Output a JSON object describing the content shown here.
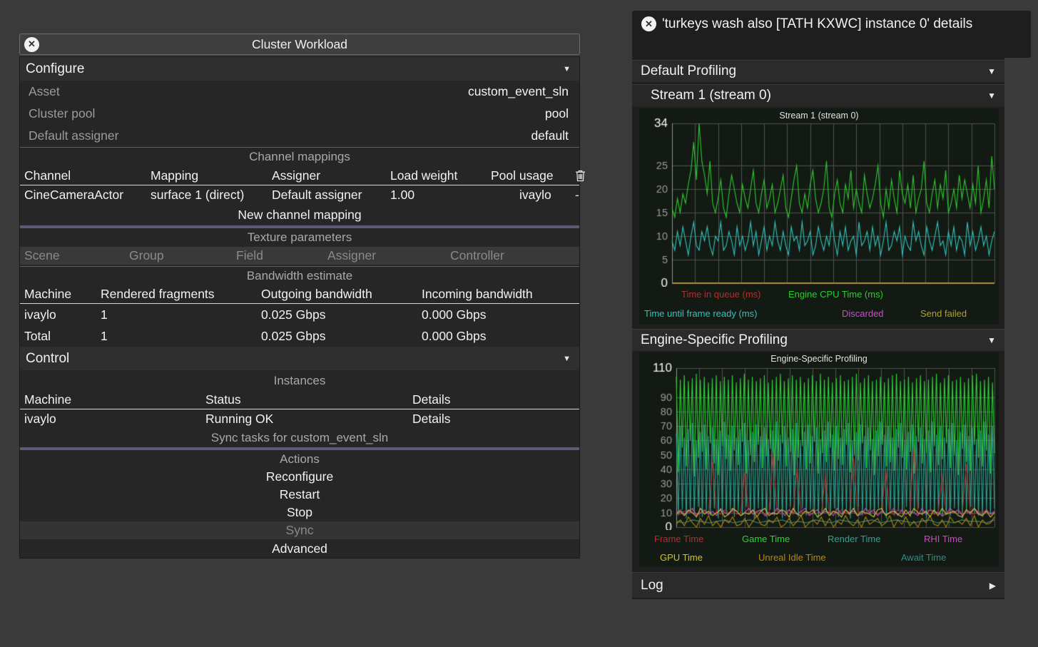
{
  "left_window": {
    "title": "Cluster Workload",
    "configure": {
      "label": "Configure",
      "rows": [
        {
          "label": "Asset",
          "value": "custom_event_sln"
        },
        {
          "label": "Cluster pool",
          "value": "pool"
        },
        {
          "label": "Default assigner",
          "value": "default"
        }
      ]
    },
    "channel_mappings": {
      "title": "Channel mappings",
      "columns": [
        "Channel",
        "Mapping",
        "Assigner",
        "Load weight",
        "Pool usage"
      ],
      "row": {
        "channel": "CineCameraActor",
        "mapping": "surface 1 (direct)",
        "assigner": "Default assigner",
        "load_weight": "1.00",
        "pool_usage": "ivaylo",
        "delete": "-"
      },
      "new_button": "New channel mapping"
    },
    "texture_parameters": {
      "title": "Texture parameters",
      "columns": [
        "Scene",
        "Group",
        "Field",
        "Assigner",
        "Controller"
      ]
    },
    "bandwidth": {
      "title": "Bandwidth estimate",
      "columns": [
        "Machine",
        "Rendered fragments",
        "Outgoing bandwidth",
        "Incoming bandwidth"
      ],
      "rows": [
        [
          "ivaylo",
          "1",
          "0.025 Gbps",
          "0.000 Gbps"
        ],
        [
          "Total",
          "1",
          "0.025 Gbps",
          "0.000 Gbps"
        ]
      ]
    },
    "control": {
      "label": "Control",
      "instances_title": "Instances",
      "columns": [
        "Machine",
        "Status",
        "Details"
      ],
      "row": {
        "machine": "ivaylo",
        "status": "Running OK",
        "details": "Details"
      },
      "sync_tasks": "Sync tasks for custom_event_sln"
    },
    "actions": {
      "title": "Actions",
      "items": [
        {
          "label": "Reconfigure",
          "disabled": false
        },
        {
          "label": "Restart",
          "disabled": false
        },
        {
          "label": "Stop",
          "disabled": false
        },
        {
          "label": "Sync",
          "disabled": true
        },
        {
          "label": "Advanced",
          "disabled": false
        }
      ]
    }
  },
  "right_window": {
    "title": "'turkeys wash also [TATH KXWC] instance 0' details",
    "default_profiling_label": "Default Profiling",
    "stream_label": "Stream 1 (stream 0)",
    "engine_label": "Engine-Specific Profiling",
    "log_label": "Log"
  },
  "chart_data": [
    {
      "type": "line",
      "title": "Stream 1 (stream 0)",
      "xlabel": "",
      "ylabel": "",
      "ylim": [
        0,
        34
      ],
      "yticks": [
        0,
        5,
        10,
        15,
        20,
        25,
        34
      ],
      "grid": true,
      "x_gridlines": 14,
      "legend_position": "bottom",
      "series": [
        {
          "name": "Time in queue (ms)",
          "color": "#a83232",
          "values": [
            0,
            0
          ]
        },
        {
          "name": "Engine CPU Time (ms)",
          "color": "#2fca2f",
          "values": [
            16,
            14,
            18,
            15,
            19,
            17,
            21,
            24,
            30,
            22,
            34,
            26,
            23,
            19,
            26,
            17,
            15,
            18,
            22,
            16,
            14,
            19,
            23,
            20,
            17,
            15,
            21,
            18,
            16,
            20,
            24,
            17,
            15,
            19,
            22,
            16,
            18,
            21,
            15,
            17,
            20,
            23,
            16,
            14,
            18,
            22,
            25,
            17,
            15,
            19,
            16,
            21,
            24,
            18,
            15,
            17,
            20,
            26,
            16,
            14,
            19,
            22,
            17,
            15,
            21,
            18,
            24,
            16,
            20,
            17,
            15,
            23,
            19,
            16,
            18,
            21,
            25,
            17,
            14,
            20,
            16,
            22,
            18,
            15,
            24,
            19,
            17,
            21,
            16,
            23,
            15,
            18,
            20,
            26,
            17,
            15,
            19,
            22,
            16,
            21,
            18,
            24,
            15,
            17,
            20,
            16,
            23,
            18,
            22,
            19,
            16,
            21,
            17,
            25,
            15,
            18,
            22,
            16,
            27,
            20
          ]
        },
        {
          "name": "Time until frame ready (ms)",
          "color": "#31c4bd",
          "values": [
            9,
            7,
            11,
            8,
            12,
            9,
            6,
            10,
            13,
            8,
            7,
            11,
            9,
            12,
            8,
            6,
            10,
            9,
            13,
            7,
            8,
            11,
            9,
            6,
            12,
            8,
            10,
            7,
            9,
            13,
            8,
            11,
            6,
            9,
            12,
            7,
            10,
            8,
            13,
            9,
            7,
            11,
            8,
            6,
            12,
            9,
            10,
            7,
            13,
            8,
            9,
            11,
            6,
            8,
            12,
            9,
            7,
            10,
            8,
            13,
            9,
            6,
            11,
            8,
            12,
            7,
            9,
            10,
            6,
            13,
            8,
            9,
            11,
            7,
            12,
            8,
            10,
            6,
            9,
            13,
            7,
            8,
            11,
            9,
            12,
            6,
            10,
            8,
            7,
            13,
            9,
            11,
            8,
            6,
            12,
            9,
            7,
            10,
            13,
            8,
            9,
            6,
            11,
            8,
            12,
            7,
            10,
            9,
            6,
            13,
            8,
            11,
            7,
            9,
            12,
            8,
            10,
            6,
            9,
            11
          ]
        },
        {
          "name": "Discarded",
          "color": "#c84fc8",
          "values": [
            0,
            0
          ]
        },
        {
          "name": "Send failed",
          "color": "#b3a21f",
          "values": [
            0,
            0
          ]
        }
      ]
    },
    {
      "type": "line",
      "title": "Engine-Specific Profiling",
      "xlabel": "",
      "ylabel": "",
      "ylim": [
        0,
        110
      ],
      "yticks": [
        0,
        10,
        20,
        30,
        40,
        50,
        60,
        70,
        80,
        90,
        110
      ],
      "grid": true,
      "x_gridlines": 14,
      "legend_position": "bottom",
      "series": [
        {
          "name": "Frame Time",
          "color": "#b03030",
          "values": [
            10,
            9,
            11,
            10,
            12,
            9,
            10,
            11,
            9,
            45,
            10,
            9,
            12,
            10,
            11,
            9,
            10,
            38,
            9,
            11,
            10,
            12,
            9,
            10,
            52,
            11,
            9,
            10,
            12,
            9,
            41,
            10,
            11,
            9,
            10,
            12,
            9,
            35,
            10,
            11,
            9,
            12,
            10,
            9,
            48,
            11,
            10,
            9,
            12,
            10,
            9,
            11,
            40,
            10,
            9,
            12,
            11,
            9,
            10,
            55,
            9,
            10,
            11,
            12,
            9,
            10,
            36,
            9,
            11,
            10,
            12,
            9,
            44,
            10,
            9,
            11,
            10,
            12,
            9,
            10
          ]
        },
        {
          "name": "Game Time",
          "color": "#2fd23a",
          "values": [
            104,
            38,
            102,
            55,
            105,
            42,
            101,
            60,
            103,
            35,
            106,
            48,
            102,
            52,
            104,
            40,
            100,
            58,
            103,
            44,
            105,
            36,
            101,
            56,
            104,
            47,
            102,
            39,
            105,
            53,
            100,
            43,
            103,
            59,
            106,
            37,
            102,
            50,
            104,
            45,
            101,
            57,
            103,
            41,
            105,
            49,
            100,
            54,
            102,
            38,
            104,
            46,
            106,
            58,
            101,
            42,
            103,
            52,
            105,
            36,
            102,
            48,
            104,
            56,
            100,
            40,
            103,
            44,
            105,
            59,
            101,
            37,
            106,
            51,
            102,
            45,
            104,
            55,
            100,
            39,
            103,
            47,
            105,
            43,
            101,
            57,
            102,
            38,
            104,
            50,
            106,
            46,
            100,
            58,
            103,
            41,
            105,
            53,
            101,
            36,
            102,
            49,
            104,
            57,
            100,
            42,
            103,
            45,
            105,
            39,
            106,
            55,
            101,
            48,
            102,
            40,
            104,
            52,
            100,
            37,
            103,
            59,
            105,
            44,
            101,
            51,
            102,
            38,
            104,
            56,
            106,
            43,
            100,
            47,
            103,
            58,
            105,
            41,
            101,
            50,
            102,
            36,
            104,
            54,
            100,
            45,
            103,
            39,
            105,
            57,
            106,
            48,
            101,
            42,
            102,
            53,
            104,
            37,
            100,
            51
          ]
        },
        {
          "name": "Render Time",
          "color": "#2aa396",
          "values": [
            65,
            8,
            70,
            12,
            62,
            6,
            68,
            10,
            72,
            9,
            60,
            14,
            66,
            7,
            71,
            11,
            63,
            8,
            69,
            13,
            61,
            6,
            67,
            10,
            73,
            9,
            64,
            12,
            70,
            7,
            62,
            11,
            68,
            8,
            72,
            14,
            60,
            9,
            66,
            6,
            71,
            13,
            63,
            10,
            69,
            7,
            61,
            12,
            67,
            8,
            73,
            11,
            64,
            6,
            70,
            9,
            62,
            14,
            68,
            10,
            72,
            7,
            60,
            13,
            66,
            8,
            71,
            12,
            63,
            9,
            69,
            6,
            61,
            11,
            67,
            10,
            73,
            8,
            64,
            13,
            70,
            7,
            62,
            9,
            68,
            12,
            72,
            6,
            60,
            10,
            66,
            14,
            71,
            8,
            63,
            11,
            69,
            9,
            61,
            7,
            67,
            13,
            73,
            10,
            64,
            6,
            70,
            12,
            62,
            8,
            68,
            11,
            72,
            9,
            60,
            14,
            66,
            7,
            71,
            10,
            63,
            13,
            69,
            8,
            61,
            6,
            67,
            12,
            73,
            9,
            64,
            11,
            70,
            7,
            62,
            10,
            68,
            8,
            72,
            13,
            60,
            9,
            66,
            6,
            71,
            11,
            63,
            14,
            69,
            10,
            61,
            8,
            67,
            7,
            73,
            12,
            64,
            9,
            70,
            13
          ]
        },
        {
          "name": "RHI Time",
          "color": "#c44fc4",
          "values": [
            10,
            12,
            9,
            11,
            13,
            8,
            10,
            12,
            9,
            11,
            8,
            13,
            10,
            9,
            12,
            11,
            8,
            10,
            13,
            9,
            11,
            12,
            8,
            10,
            9,
            13,
            11,
            8,
            12,
            10,
            9,
            11,
            13,
            8,
            10,
            12,
            9,
            11,
            10,
            8,
            13,
            9,
            12,
            10,
            11,
            8,
            9,
            13,
            10,
            12,
            8,
            11,
            9,
            10,
            13,
            8,
            12,
            9,
            11,
            10,
            8,
            13,
            9,
            12,
            11,
            10,
            8,
            9,
            13,
            10,
            12,
            8,
            11,
            9,
            13,
            10,
            8,
            12,
            9,
            11
          ]
        },
        {
          "name": "GPU Time",
          "color": "#cfc22e",
          "values": [
            9,
            11,
            8,
            12,
            10,
            7,
            13,
            9,
            11,
            8,
            10,
            12,
            7,
            9,
            13,
            11,
            8,
            10,
            9,
            12,
            7,
            11,
            13,
            8,
            10,
            9,
            12,
            11,
            7,
            13,
            9,
            8,
            11,
            10,
            12,
            7,
            9,
            13,
            8,
            11,
            10,
            7,
            12,
            9,
            13,
            8,
            11,
            10,
            9,
            7,
            12,
            13,
            8,
            10,
            11,
            9,
            7,
            12,
            8,
            13,
            10,
            9,
            11,
            7,
            12,
            8,
            13,
            9,
            10,
            11,
            8,
            7,
            12,
            10,
            13,
            9,
            8,
            11,
            7,
            10
          ]
        },
        {
          "name": "Unreal Idle Time",
          "color": "#b8860b",
          "values": [
            2,
            5,
            1,
            7,
            3,
            0,
            6,
            2,
            8,
            1,
            4,
            0,
            5,
            3,
            7,
            1,
            2,
            6,
            0,
            4,
            8,
            2,
            1,
            5,
            3,
            7,
            0,
            2,
            6,
            1,
            4,
            8,
            0,
            3,
            5,
            2,
            7,
            1,
            6,
            0,
            4,
            2,
            8,
            3,
            1,
            5,
            0,
            7,
            2,
            4,
            6,
            1,
            3,
            8,
            0,
            5,
            2,
            7,
            1,
            4,
            0,
            6,
            3,
            8,
            2,
            1,
            5,
            0,
            7,
            3,
            4,
            2,
            6,
            1,
            8,
            0,
            5,
            2,
            3,
            7
          ]
        },
        {
          "name": "Await Time",
          "color": "#2d8c84",
          "values": [
            4,
            3,
            5,
            4,
            3,
            4,
            5,
            3,
            4,
            5,
            3,
            4,
            4,
            5,
            3,
            4,
            3,
            5,
            4,
            3,
            5,
            4,
            3,
            4,
            5,
            3,
            4,
            5,
            4,
            3,
            4,
            5,
            3,
            4,
            3,
            5,
            4,
            4,
            3,
            5
          ]
        }
      ]
    }
  ]
}
